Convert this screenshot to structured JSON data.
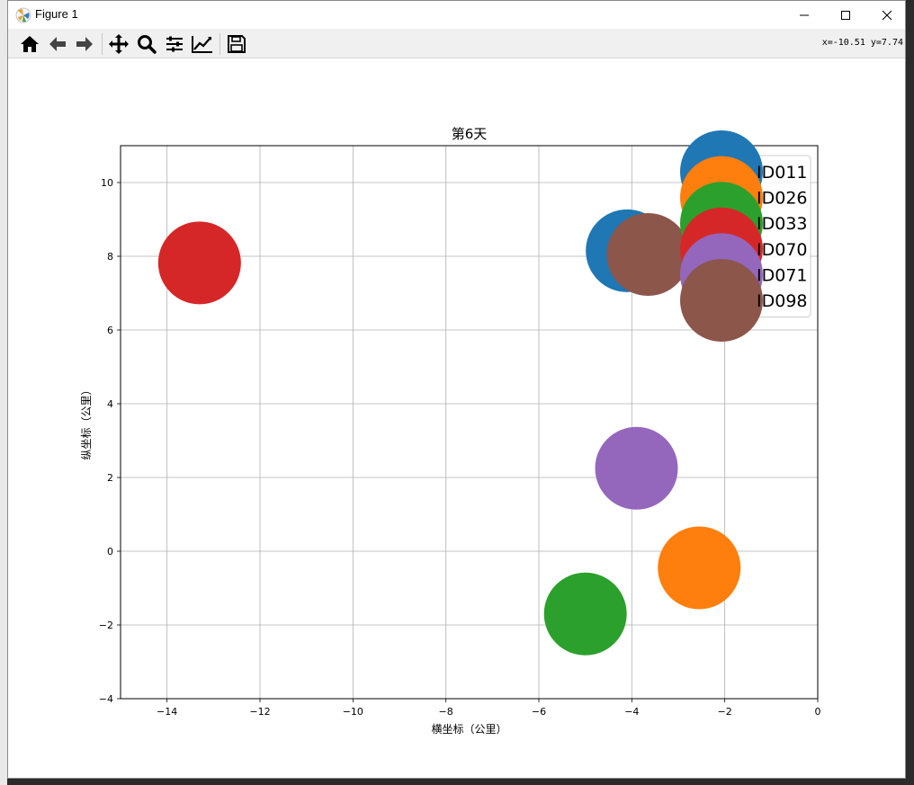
{
  "window": {
    "title": "Figure 1",
    "coords_readout": "x=-10.51 y=7.74"
  },
  "toolbar": {
    "buttons": [
      {
        "name": "home-icon",
        "tip": "Reset original view"
      },
      {
        "name": "back-icon",
        "tip": "Back"
      },
      {
        "name": "forward-icon",
        "tip": "Forward"
      },
      {
        "name": "pan-icon",
        "tip": "Pan"
      },
      {
        "name": "zoom-icon",
        "tip": "Zoom"
      },
      {
        "name": "subplots-icon",
        "tip": "Configure subplots"
      },
      {
        "name": "customize-icon",
        "tip": "Edit axis"
      },
      {
        "name": "save-icon",
        "tip": "Save"
      }
    ]
  },
  "chart_data": {
    "type": "scatter",
    "title": "第6天",
    "xlabel": "横坐标（公里）",
    "ylabel": "纵坐标（公里）",
    "xlim": [
      -15,
      0
    ],
    "ylim": [
      -4,
      11
    ],
    "xticks": [
      -14,
      -12,
      -10,
      -8,
      -6,
      -4,
      -2,
      0
    ],
    "yticks": [
      -4,
      -2,
      0,
      2,
      4,
      6,
      8,
      10
    ],
    "grid": true,
    "legend_position": "top-right",
    "series": [
      {
        "name": "ID011",
        "color": "#1f77b4",
        "x": -4.1,
        "y": 8.15
      },
      {
        "name": "ID026",
        "color": "#ff7f0e",
        "x": -2.55,
        "y": -0.45
      },
      {
        "name": "ID033",
        "color": "#2ca02c",
        "x": -5.0,
        "y": -1.7
      },
      {
        "name": "ID070",
        "color": "#d62728",
        "x": -13.3,
        "y": 7.82
      },
      {
        "name": "ID071",
        "color": "#9467bd",
        "x": -3.9,
        "y": 2.25
      },
      {
        "name": "ID098",
        "color": "#8c564b",
        "x": -3.65,
        "y": 8.05
      }
    ]
  }
}
